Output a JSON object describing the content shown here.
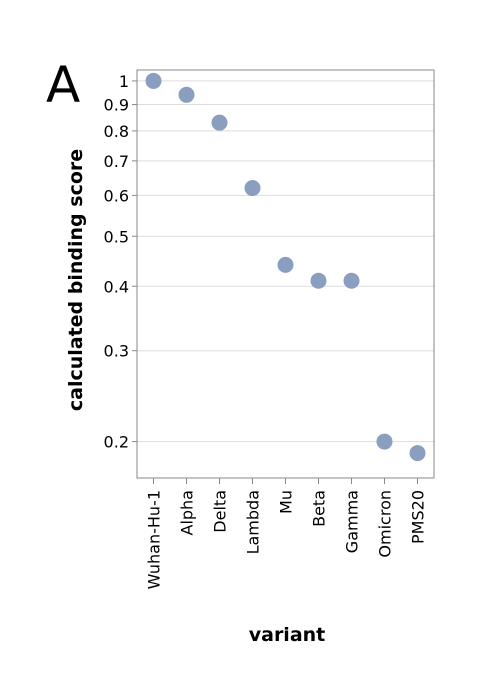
{
  "panel_label": "A",
  "chart_data": {
    "type": "scatter",
    "xlabel": "variant",
    "ylabel": "calculated binding score",
    "y_scale": "log",
    "ylim": [
      0.17,
      1.05
    ],
    "y_ticks": [
      0.2,
      0.3,
      0.4,
      0.5,
      0.6,
      0.7,
      0.8,
      0.9,
      1
    ],
    "y_tick_labels": [
      "0.2",
      "0.3",
      "0.4",
      "0.5",
      "0.6",
      "0.7",
      "0.8",
      "0.9",
      "1"
    ],
    "grid": true,
    "categories": [
      "Wuhan-Hu-1",
      "Alpha",
      "Delta",
      "Lambda",
      "Mu",
      "Beta",
      "Gamma",
      "Omicron",
      "PMS20"
    ],
    "values": [
      1.0,
      0.94,
      0.83,
      0.62,
      0.44,
      0.41,
      0.41,
      0.2,
      0.19
    ],
    "point_color": "#8a9ebf"
  }
}
